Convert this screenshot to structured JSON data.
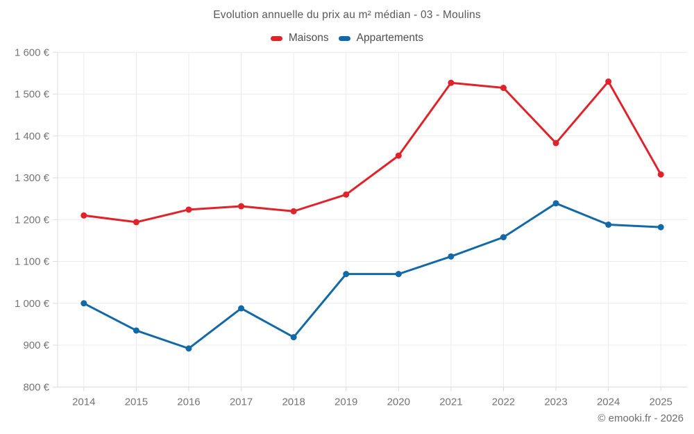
{
  "title": "Evolution annuelle du prix au m² médian - 03 - Moulins",
  "legend": {
    "items": [
      {
        "label": "Maisons",
        "color": "#e0232a"
      },
      {
        "label": "Appartements",
        "color": "#1269a7"
      }
    ]
  },
  "footer": {
    "credit": "© emooki.fr - 2026"
  },
  "colors": {
    "grid": "#ececec",
    "axis": "#dcdcdc",
    "tick_label": "#757575"
  },
  "chart_data": {
    "type": "line",
    "title": "Evolution annuelle du prix au m² médian - 03 - Moulins",
    "categories": [
      "2014",
      "2015",
      "2016",
      "2017",
      "2018",
      "2019",
      "2020",
      "2021",
      "2022",
      "2023",
      "2024",
      "2025"
    ],
    "series": [
      {
        "name": "Maisons",
        "color": "#e0232a",
        "values": [
          1210,
          1194,
          1224,
          1232,
          1220,
          1260,
          1353,
          1527,
          1515,
          1383,
          1530,
          1308
        ]
      },
      {
        "name": "Appartements",
        "color": "#1269a7",
        "values": [
          1000,
          935,
          892,
          988,
          919,
          1070,
          1070,
          1112,
          1158,
          1239,
          1188,
          1182
        ]
      }
    ],
    "xlabel": "",
    "ylabel": "",
    "ylim": [
      800,
      1600
    ],
    "ytick_step": 100,
    "ytick_suffix": " €",
    "grid": true,
    "legend_position": "top"
  }
}
